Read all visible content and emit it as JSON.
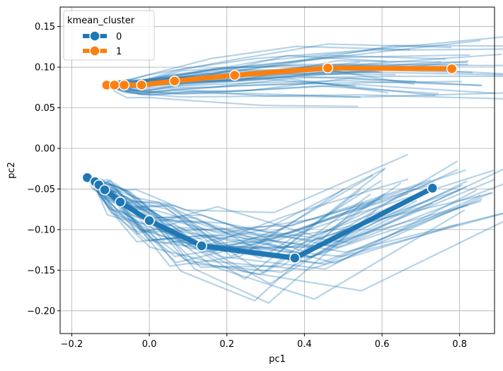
{
  "chart_data": {
    "type": "line",
    "title": "",
    "xlabel": "pc1",
    "ylabel": "pc2",
    "xlim": [
      -0.23,
      0.89
    ],
    "ylim": [
      -0.228,
      0.174
    ],
    "xticks": [
      -0.2,
      0.0,
      0.2,
      0.4,
      0.6,
      0.8
    ],
    "xtick_labels": [
      "−0.2",
      "0.0",
      "0.2",
      "0.4",
      "0.6",
      "0.8"
    ],
    "yticks": [
      -0.2,
      -0.15,
      -0.1,
      -0.05,
      0.0,
      0.05,
      0.1,
      0.15
    ],
    "ytick_labels": [
      "−0.20",
      "−0.15",
      "−0.10",
      "−0.05",
      "0.00",
      "0.05",
      "0.10",
      "0.15"
    ],
    "grid": true,
    "legend": {
      "title": "kmean_cluster",
      "placement": "top-left",
      "entries": [
        {
          "label": "0",
          "color": "#1f77b4"
        },
        {
          "label": "1",
          "color": "#ff7f0e"
        }
      ]
    },
    "series": [
      {
        "name": "0",
        "color": "#1f77b4",
        "x": [
          -0.16,
          -0.14,
          -0.13,
          -0.115,
          -0.075,
          0.0,
          0.135,
          0.375,
          0.73
        ],
        "y": [
          -0.036,
          -0.041,
          -0.045,
          -0.051,
          -0.066,
          -0.089,
          -0.12,
          -0.135,
          -0.049
        ]
      },
      {
        "name": "1",
        "color": "#ff7f0e",
        "x": [
          -0.11,
          -0.09,
          -0.065,
          -0.02,
          0.065,
          0.22,
          0.46,
          0.78
        ],
        "y": [
          0.078,
          0.078,
          0.078,
          0.078,
          0.083,
          0.09,
          0.099,
          0.098
        ]
      }
    ],
    "background_lines_color": "#1f77b4"
  }
}
